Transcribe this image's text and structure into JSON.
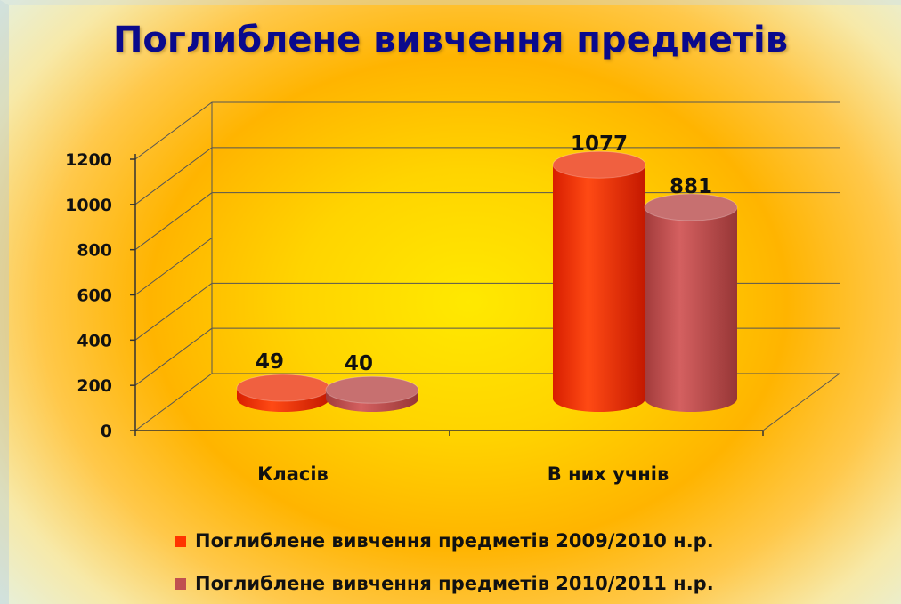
{
  "chart_data": {
    "type": "bar",
    "title": "Поглиблене вивчення предметів",
    "categories": [
      "Класів",
      "В них учнів"
    ],
    "series": [
      {
        "name": "Поглиблене вивчення предметів 2009/2010 н.р.",
        "values": [
          49,
          1077
        ],
        "color": "#ff3300"
      },
      {
        "name": "Поглиблене вивчення предметів 2010/2011 н.р.",
        "values": [
          40,
          881
        ],
        "color": "#c05050"
      }
    ],
    "ylim": [
      0,
      1200
    ],
    "yticks": [
      "0",
      "200",
      "400",
      "600",
      "800",
      "1000",
      "1200"
    ],
    "data_labels": [
      [
        "49",
        "1077"
      ],
      [
        "40",
        "881"
      ]
    ],
    "grid": true,
    "legend_position": "bottom",
    "style": "3d-cylinder"
  }
}
